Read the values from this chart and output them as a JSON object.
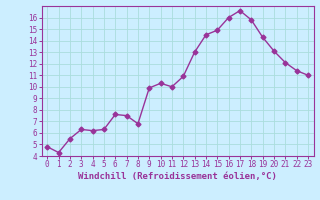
{
  "x": [
    0,
    1,
    2,
    3,
    4,
    5,
    6,
    7,
    8,
    9,
    10,
    11,
    12,
    13,
    14,
    15,
    16,
    17,
    18,
    19,
    20,
    21,
    22,
    23
  ],
  "y": [
    4.8,
    4.3,
    5.5,
    6.3,
    6.2,
    6.3,
    7.6,
    7.5,
    6.8,
    9.9,
    10.3,
    10.0,
    10.9,
    13.0,
    14.5,
    14.9,
    16.0,
    16.6,
    15.8,
    14.3,
    13.1,
    12.1,
    11.4,
    11.0
  ],
  "line_color": "#993399",
  "marker": "D",
  "marker_size": 2.5,
  "bg_color": "#cceeff",
  "grid_color": "#aadddd",
  "xlabel": "Windchill (Refroidissement éolien,°C)",
  "xlabel_color": "#993399",
  "tick_color": "#993399",
  "spine_color": "#993399",
  "xlim_min": -0.5,
  "xlim_max": 23.5,
  "ylim_min": 4,
  "ylim_max": 17,
  "yticks": [
    4,
    5,
    6,
    7,
    8,
    9,
    10,
    11,
    12,
    13,
    14,
    15,
    16
  ],
  "xticks": [
    0,
    1,
    2,
    3,
    4,
    5,
    6,
    7,
    8,
    9,
    10,
    11,
    12,
    13,
    14,
    15,
    16,
    17,
    18,
    19,
    20,
    21,
    22,
    23
  ],
  "tick_fontsize": 5.5,
  "xlabel_fontsize": 6.5,
  "linewidth": 1.0
}
